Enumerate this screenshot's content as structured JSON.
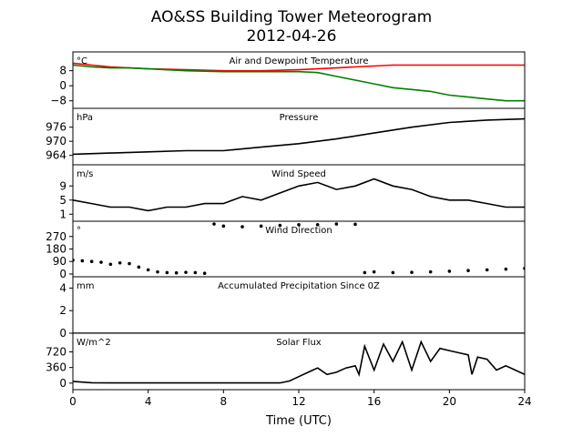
{
  "title_line1": "AO&SS Building Tower Meteorogram",
  "title_line2": "2012-04-26",
  "xlabel": "Time (UTC)",
  "colors": {
    "temperature": "#ff0000",
    "dewpoint": "#008000",
    "default": "#000000"
  },
  "chart_data": [
    {
      "type": "line",
      "title": "Air and Dewpoint Temperature",
      "unit_label": "°C",
      "xlim": [
        0,
        24
      ],
      "ylim": [
        -12,
        18
      ],
      "yticks": [
        -8,
        0,
        8
      ],
      "series": [
        {
          "color": "red",
          "x": [
            0,
            1,
            2,
            3,
            4,
            6,
            8,
            10,
            12,
            13,
            14,
            15,
            16,
            17,
            18,
            19,
            20,
            21,
            22,
            23,
            24
          ],
          "y": [
            12,
            11,
            10,
            9.5,
            9,
            8.5,
            8,
            8,
            8.5,
            9,
            9.5,
            10,
            10.5,
            11,
            11,
            11,
            11,
            11,
            11,
            11,
            11
          ]
        },
        {
          "color": "green",
          "x": [
            0,
            1,
            2,
            3,
            4,
            6,
            8,
            10,
            12,
            13,
            14,
            15,
            16,
            17,
            18,
            19,
            20,
            21,
            22,
            23,
            24
          ],
          "y": [
            11,
            10,
            9.5,
            9.5,
            9,
            8,
            7.5,
            7.5,
            7.5,
            7,
            5,
            3,
            1,
            -1,
            -2,
            -3,
            -5,
            -6,
            -7,
            -8,
            -8
          ]
        }
      ]
    },
    {
      "type": "line",
      "title": "Pressure",
      "unit_label": "hPa",
      "xlim": [
        0,
        24
      ],
      "ylim": [
        960,
        984
      ],
      "yticks": [
        964,
        970,
        976
      ],
      "series": [
        {
          "color": "black",
          "x": [
            0,
            2,
            4,
            6,
            8,
            10,
            12,
            14,
            16,
            18,
            20,
            22,
            24
          ],
          "y": [
            964.5,
            965,
            965.5,
            966,
            966,
            967.5,
            969,
            971,
            973.5,
            976,
            978,
            979,
            979.5
          ]
        }
      ]
    },
    {
      "type": "line",
      "title": "Wind Speed",
      "unit_label": "m/s",
      "xlim": [
        0,
        24
      ],
      "ylim": [
        -1,
        15
      ],
      "yticks": [
        1,
        5,
        9
      ],
      "series": [
        {
          "color": "black",
          "x": [
            0,
            1,
            2,
            3,
            4,
            5,
            6,
            7,
            8,
            9,
            10,
            11,
            12,
            13,
            14,
            15,
            16,
            17,
            18,
            19,
            20,
            21,
            22,
            23,
            24
          ],
          "y": [
            5,
            4,
            3,
            3,
            2,
            3,
            3,
            4,
            4,
            6,
            5,
            7,
            9,
            10,
            8,
            9,
            11,
            9,
            8,
            6,
            5,
            5,
            4,
            3,
            3
          ]
        }
      ]
    },
    {
      "type": "scatter",
      "title": "Wind Direction",
      "unit_label": "°",
      "xlim": [
        0,
        24
      ],
      "ylim": [
        -20,
        380
      ],
      "yticks": [
        0,
        90,
        180,
        270
      ],
      "series": [
        {
          "color": "black",
          "x": [
            0,
            0.5,
            1,
            1.5,
            2,
            2.5,
            3,
            3.5,
            4,
            4.5,
            5,
            5.5,
            6,
            6.5,
            7,
            7.5,
            8,
            9,
            10,
            11,
            12,
            13,
            14,
            15,
            15.5,
            16,
            17,
            18,
            19,
            20,
            21,
            22,
            23,
            24
          ],
          "y": [
            100,
            95,
            90,
            85,
            70,
            80,
            75,
            50,
            30,
            15,
            10,
            8,
            12,
            10,
            5,
            360,
            345,
            340,
            345,
            350,
            355,
            355,
            360,
            358,
            10,
            15,
            10,
            12,
            15,
            20,
            25,
            30,
            35,
            40
          ]
        }
      ]
    },
    {
      "type": "line",
      "title": "Accumulated Precipitation Since 0Z",
      "unit_label": "mm",
      "xlim": [
        0,
        24
      ],
      "ylim": [
        0,
        5
      ],
      "yticks": [
        0,
        2,
        4
      ],
      "series": [
        {
          "color": "black",
          "x": [
            0,
            24
          ],
          "y": [
            0,
            0
          ]
        }
      ]
    },
    {
      "type": "line",
      "title": "Solar Flux",
      "unit_label": "W/m^2",
      "xlim": [
        0,
        24
      ],
      "ylim": [
        -150,
        1150
      ],
      "yticks": [
        0,
        360,
        720
      ],
      "series": [
        {
          "color": "black",
          "x": [
            0,
            1,
            2,
            3,
            4,
            5,
            6,
            7,
            8,
            9,
            10,
            11,
            11.5,
            12,
            12.5,
            13,
            13.5,
            14,
            14.5,
            15,
            15.2,
            15.5,
            16,
            16.5,
            17,
            17.5,
            18,
            18.5,
            19,
            19.5,
            20,
            20.5,
            21,
            21.2,
            21.5,
            22,
            22.5,
            23,
            24
          ],
          "y": [
            40,
            10,
            5,
            5,
            5,
            5,
            5,
            5,
            5,
            5,
            5,
            5,
            50,
            150,
            250,
            350,
            200,
            250,
            350,
            400,
            200,
            850,
            300,
            900,
            500,
            950,
            300,
            950,
            500,
            800,
            750,
            700,
            650,
            200,
            600,
            550,
            300,
            400,
            200
          ]
        }
      ]
    }
  ],
  "x_axis": {
    "ticks": [
      0,
      4,
      8,
      12,
      16,
      20,
      24
    ]
  }
}
